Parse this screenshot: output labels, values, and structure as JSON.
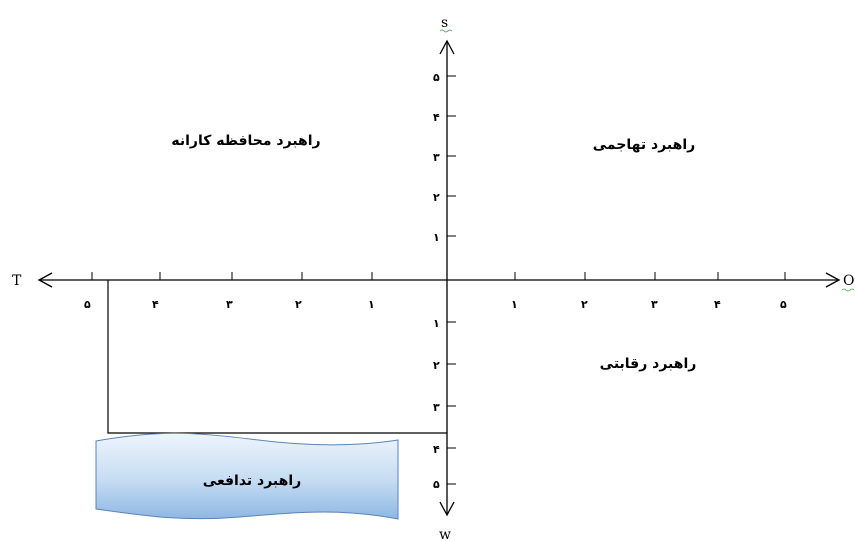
{
  "axes": {
    "top_label": "s",
    "bottom_label": "w",
    "left_label": "T",
    "right_label": "O"
  },
  "ticks": {
    "up": [
      "۱",
      "۲",
      "۳",
      "۴",
      "۵"
    ],
    "down": [
      "۱",
      "۲",
      "۳",
      "۴",
      "۵"
    ],
    "right": [
      "۱",
      "۲",
      "۳",
      "۴",
      "۵"
    ],
    "left": [
      "۱",
      "۲",
      "۳",
      "۴",
      "۵"
    ]
  },
  "regions": {
    "top_left": "راهبرد محافظه کارانه",
    "top_right": "راهبرد تهاجمی",
    "bottom_right": "راهبرد رقابتی",
    "bottom_left_banner": "راهبرد تدافعی"
  },
  "colors": {
    "banner_light": "#eef5fc",
    "banner_dark": "#8fb7e3",
    "banner_stroke": "#5a84b8"
  }
}
